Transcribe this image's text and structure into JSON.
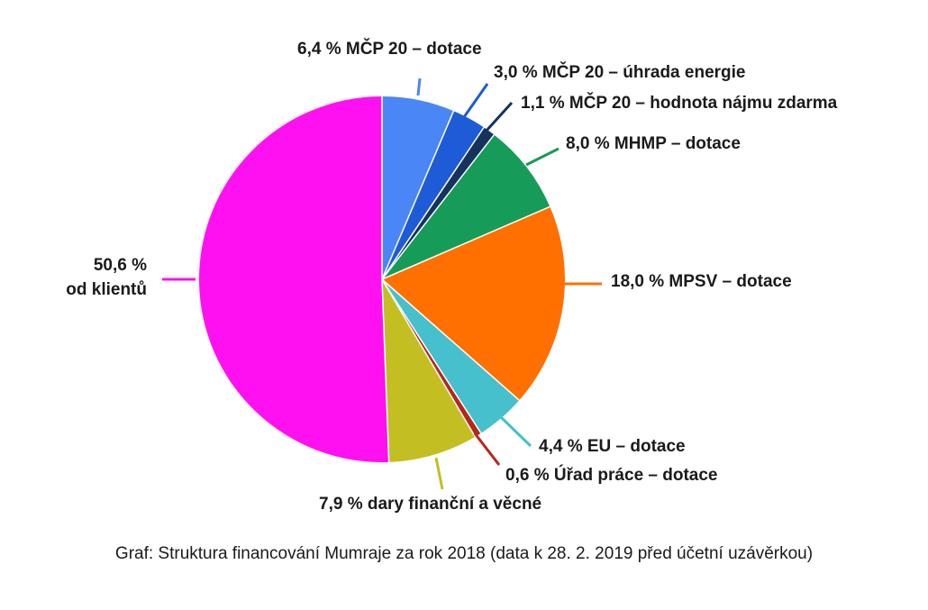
{
  "caption": "Graf: Struktura financování Mumraje za rok 2018 (data k 28. 2. 2019 před účetní uzávěrkou)",
  "chart_data": {
    "type": "pie",
    "start_angle_deg": 0,
    "direction": "clockwise",
    "slices": [
      {
        "label": "6,4 % MČP 20 – dotace",
        "value": 6.4,
        "color": "#4a86f5"
      },
      {
        "label": "3,0 % MČP 20 – úhrada energie",
        "value": 3.0,
        "color": "#1e5bd6"
      },
      {
        "label": "1,1 % MČP 20 – hodnota nájmu zdarma",
        "value": 1.1,
        "color": "#16335e"
      },
      {
        "label": "8,0 % MHMP – dotace",
        "value": 8.0,
        "color": "#169c58"
      },
      {
        "label": "18,0 % MPSV – dotace",
        "value": 18.0,
        "color": "#ff7000"
      },
      {
        "label": "4,4 % EU – dotace",
        "value": 4.4,
        "color": "#45c0cc"
      },
      {
        "label": "0,6 % Úřad práce – dotace",
        "value": 0.6,
        "color": "#b5271c"
      },
      {
        "label": "7,9 % dary finanční a věcné",
        "value": 7.9,
        "color": "#c3bf22"
      },
      {
        "label_lines": [
          "50,6 %",
          "od klientů"
        ],
        "value": 50.6,
        "color": "#ff10f0"
      }
    ]
  }
}
